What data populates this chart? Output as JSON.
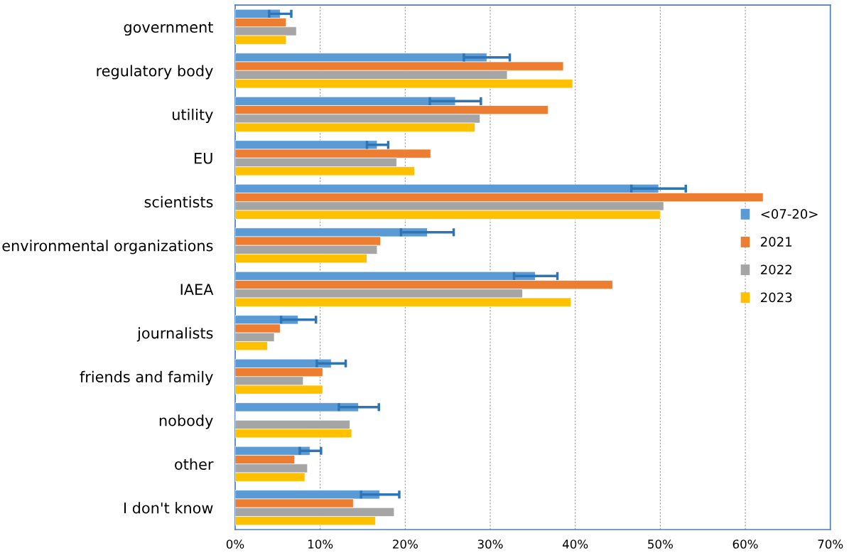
{
  "chart_data": {
    "type": "bar",
    "orientation": "horizontal",
    "categories": [
      "government",
      "regulatory body",
      "utility",
      "EU",
      "scientists",
      "environmental organizations",
      "IAEA",
      "journalists",
      "friends and family",
      "nobody",
      "other",
      "I don't know"
    ],
    "series": [
      {
        "name": "<07-20>",
        "color": "#5b9bd5",
        "values": [
          5.3,
          29.6,
          25.9,
          16.7,
          49.8,
          22.6,
          35.3,
          7.4,
          11.3,
          14.5,
          8.8,
          17.0
        ],
        "errors": [
          [
            4.0,
            6.6
          ],
          [
            26.9,
            32.3
          ],
          [
            22.9,
            28.9
          ],
          [
            15.5,
            18.0
          ],
          [
            46.6,
            53.0
          ],
          [
            19.5,
            25.7
          ],
          [
            32.8,
            37.9
          ],
          [
            5.4,
            9.5
          ],
          [
            9.6,
            13.0
          ],
          [
            12.2,
            16.9
          ],
          [
            7.6,
            10.1
          ],
          [
            14.8,
            19.3
          ]
        ]
      },
      {
        "name": "2021",
        "color": "#ed7d31",
        "values": [
          6.0,
          38.6,
          36.8,
          23.0,
          62.1,
          17.1,
          44.4,
          5.3,
          10.3,
          null,
          7.0,
          13.9
        ]
      },
      {
        "name": "2022",
        "color": "#a5a5a5",
        "values": [
          7.2,
          32.0,
          28.8,
          19.0,
          50.4,
          16.7,
          33.8,
          4.6,
          8.0,
          13.5,
          8.5,
          18.7
        ]
      },
      {
        "name": "2023",
        "color": "#ffc000",
        "values": [
          6.0,
          39.7,
          28.2,
          21.1,
          50.0,
          15.5,
          39.5,
          3.8,
          10.3,
          13.7,
          8.2,
          16.5
        ]
      }
    ],
    "xlim": [
      0,
      70
    ],
    "xticks": [
      {
        "value": 0,
        "label": "0%"
      },
      {
        "value": 10,
        "label": "10%"
      },
      {
        "value": 20,
        "label": "20%"
      },
      {
        "value": 30,
        "label": "30%"
      },
      {
        "value": 40,
        "label": "40%"
      },
      {
        "value": 50,
        "label": "50%"
      },
      {
        "value": 60,
        "label": "60%"
      },
      {
        "value": 70,
        "label": "70%"
      }
    ],
    "grid": "x",
    "legend": "right"
  }
}
